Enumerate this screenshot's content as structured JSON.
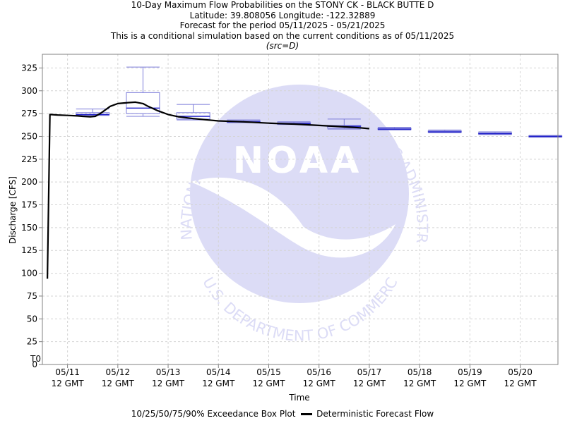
{
  "header": {
    "line1": "10-Day Maximum Flow Probabilities on the STONY CK - BLACK BUTTE D",
    "line2": "Latitude: 39.808056 Longitude: -122.32889",
    "line3": "Forecast for the period 05/11/2025 - 05/21/2025",
    "line4": "This is a conditional simulation based on the current conditions as of 05/11/2025",
    "line5": "(src=D)"
  },
  "watermark": {
    "logo_text": "NOAA",
    "top_text": "NATIONAL OCEANIC AND ATMOSPHERIC ADMINISTRATION",
    "bottom_text": "U.S. DEPARTMENT OF COMMERCE"
  },
  "legend": {
    "box_label": "10/25/50/75/90% Exceedance Box Plot",
    "line_label": "Deterministic Forecast Flow"
  },
  "colors": {
    "box": "#7b7bd9",
    "median": "#1c1cc8",
    "line": "#000000",
    "t0": "#3a3ab0",
    "grid": "#d4d4d4",
    "watermark": "#dcdcf6"
  },
  "chart_data": {
    "type": "box",
    "xlabel": "Time",
    "ylabel": "Discharge [CFS]",
    "ylim": [
      0,
      340
    ],
    "yticks": [
      0,
      25,
      50,
      75,
      100,
      125,
      150,
      175,
      200,
      225,
      250,
      275,
      300,
      325
    ],
    "xlim": [
      -0.5,
      9.75
    ],
    "xticks": [
      {
        "x": 0,
        "line1": "05/11",
        "line2": "12 GMT"
      },
      {
        "x": 1,
        "line1": "05/12",
        "line2": "12 GMT"
      },
      {
        "x": 2,
        "line1": "05/13",
        "line2": "12 GMT"
      },
      {
        "x": 3,
        "line1": "05/14",
        "line2": "12 GMT"
      },
      {
        "x": 4,
        "line1": "05/15",
        "line2": "12 GMT"
      },
      {
        "x": 5,
        "line1": "05/16",
        "line2": "12 GMT"
      },
      {
        "x": 6,
        "line1": "05/17",
        "line2": "12 GMT"
      },
      {
        "x": 7,
        "line1": "05/18",
        "line2": "12 GMT"
      },
      {
        "x": 8,
        "line1": "05/19",
        "line2": "12 GMT"
      },
      {
        "x": 9,
        "line1": "05/20",
        "line2": "12 GMT"
      }
    ],
    "t0": {
      "x": -0.5,
      "label": "T0"
    },
    "grid": true,
    "boxes": [
      {
        "day": 0.5,
        "p10": 273,
        "p25": 273.5,
        "p50": 274,
        "p75": 276,
        "p90": 280
      },
      {
        "day": 1.5,
        "p10": 272,
        "p25": 275,
        "p50": 281,
        "p75": 298,
        "p90": 326
      },
      {
        "day": 2.5,
        "p10": 268,
        "p25": 269,
        "p50": 272,
        "p75": 276,
        "p90": 285
      },
      {
        "day": 3.5,
        "p10": 265,
        "p25": 265.5,
        "p50": 266,
        "p75": 267,
        "p90": 268
      },
      {
        "day": 4.5,
        "p10": 263,
        "p25": 263.5,
        "p50": 264,
        "p75": 265,
        "p90": 266
      },
      {
        "day": 5.5,
        "p10": 258,
        "p25": 259,
        "p50": 261,
        "p75": 262,
        "p90": 269
      },
      {
        "day": 6.5,
        "p10": 257,
        "p25": 257.5,
        "p50": 258,
        "p75": 259,
        "p90": 260
      },
      {
        "day": 7.5,
        "p10": 254,
        "p25": 254.5,
        "p50": 255,
        "p75": 256,
        "p90": 257
      },
      {
        "day": 8.5,
        "p10": 252,
        "p25": 252.5,
        "p50": 253,
        "p75": 254,
        "p90": 255
      },
      {
        "day": 9.5,
        "p10": 249,
        "p25": 249.5,
        "p50": 250,
        "p75": 250.5,
        "p90": 251
      }
    ],
    "series": [
      {
        "name": "Deterministic Forecast Flow",
        "points": [
          [
            -0.4,
            94
          ],
          [
            -0.35,
            274
          ],
          [
            -0.2,
            273.5
          ],
          [
            0,
            273
          ],
          [
            0.2,
            272.5
          ],
          [
            0.3,
            272
          ],
          [
            0.45,
            271.5
          ],
          [
            0.55,
            272
          ],
          [
            0.65,
            275
          ],
          [
            0.85,
            283
          ],
          [
            1.0,
            286
          ],
          [
            1.2,
            287
          ],
          [
            1.35,
            287.5
          ],
          [
            1.5,
            286
          ],
          [
            1.6,
            283
          ],
          [
            1.8,
            278
          ],
          [
            2.0,
            274
          ],
          [
            2.2,
            271.5
          ],
          [
            2.5,
            269.5
          ],
          [
            2.8,
            268
          ],
          [
            3.0,
            267
          ],
          [
            3.5,
            266
          ],
          [
            4.0,
            264.5
          ],
          [
            4.5,
            263.5
          ],
          [
            5.0,
            262
          ],
          [
            5.5,
            260.5
          ],
          [
            5.8,
            259.5
          ],
          [
            6.0,
            258.5
          ]
        ]
      }
    ]
  }
}
